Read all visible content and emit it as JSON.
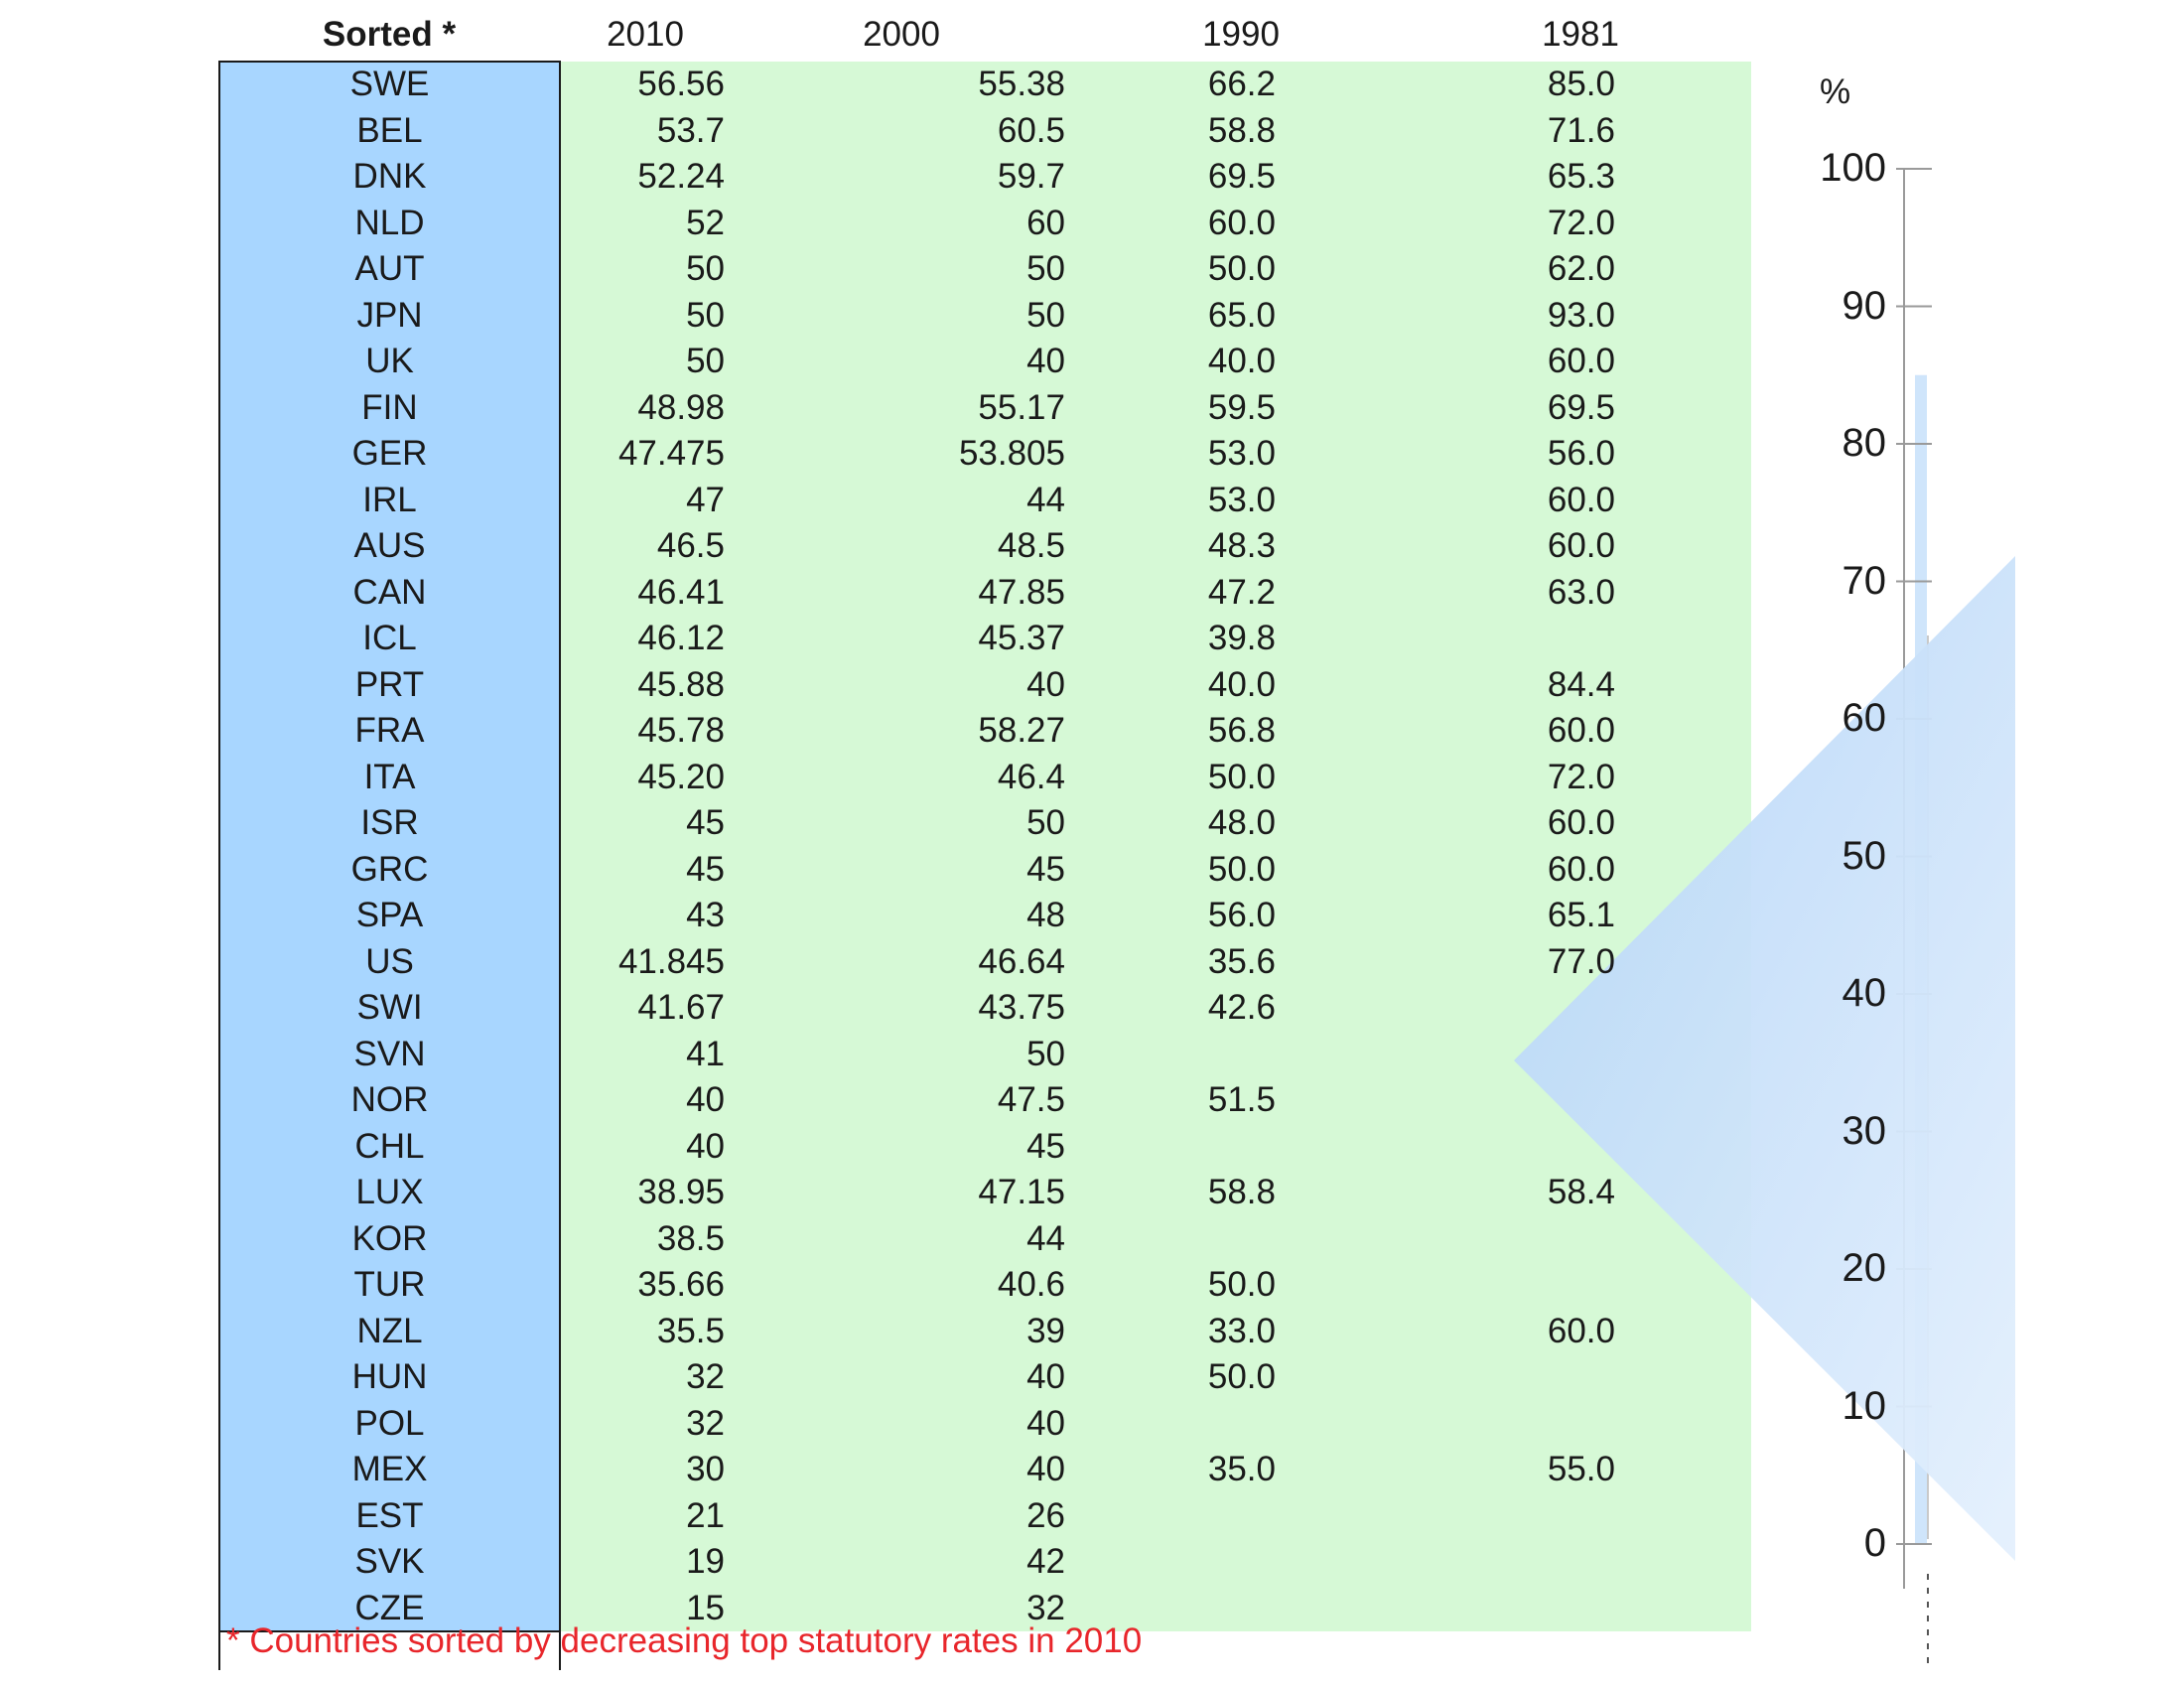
{
  "table": {
    "headers": [
      "Sorted *",
      "2010",
      "2000",
      "1990",
      "1981"
    ],
    "rows": [
      [
        "SWE",
        "56.56",
        "55.38",
        "66.2",
        "85.0"
      ],
      [
        "BEL",
        "53.7",
        "60.5",
        "58.8",
        "71.6"
      ],
      [
        "DNK",
        "52.24",
        "59.7",
        "69.5",
        "65.3"
      ],
      [
        "NLD",
        "52",
        "60",
        "60.0",
        "72.0"
      ],
      [
        "AUT",
        "50",
        "50",
        "50.0",
        "62.0"
      ],
      [
        "JPN",
        "50",
        "50",
        "65.0",
        "93.0"
      ],
      [
        "UK",
        "50",
        "40",
        "40.0",
        "60.0"
      ],
      [
        "FIN",
        "48.98",
        "55.17",
        "59.5",
        "69.5"
      ],
      [
        "GER",
        "47.475",
        "53.805",
        "53.0",
        "56.0"
      ],
      [
        "IRL",
        "47",
        "44",
        "53.0",
        "60.0"
      ],
      [
        "AUS",
        "46.5",
        "48.5",
        "48.3",
        "60.0"
      ],
      [
        "CAN",
        "46.41",
        "47.85",
        "47.2",
        "63.0"
      ],
      [
        "ICL",
        "46.12",
        "45.37",
        "39.8",
        ""
      ],
      [
        "PRT",
        "45.88",
        "40",
        "40.0",
        "84.4"
      ],
      [
        "FRA",
        "45.78",
        "58.27",
        "56.8",
        "60.0"
      ],
      [
        "ITA",
        "45.20",
        "46.4",
        "50.0",
        "72.0"
      ],
      [
        "ISR",
        "45",
        "50",
        "48.0",
        "60.0"
      ],
      [
        "GRC",
        "45",
        "45",
        "50.0",
        "60.0"
      ],
      [
        "SPA",
        "43",
        "48",
        "56.0",
        "65.1"
      ],
      [
        "US",
        "41.845",
        "46.64",
        "35.6",
        "77.0"
      ],
      [
        "SWI",
        "41.67",
        "43.75",
        "42.6",
        ""
      ],
      [
        "SVN",
        "41",
        "50",
        "",
        ""
      ],
      [
        "NOR",
        "40",
        "47.5",
        "51.5",
        ""
      ],
      [
        "CHL",
        "40",
        "45",
        "",
        ""
      ],
      [
        "LUX",
        "38.95",
        "47.15",
        "58.8",
        "58.4"
      ],
      [
        "KOR",
        "38.5",
        "44",
        "",
        ""
      ],
      [
        "TUR",
        "35.66",
        "40.6",
        "50.0",
        ""
      ],
      [
        "NZL",
        "35.5",
        "39",
        "33.0",
        "60.0"
      ],
      [
        "HUN",
        "32",
        "40",
        "50.0",
        ""
      ],
      [
        "POL",
        "32",
        "40",
        "",
        ""
      ],
      [
        "MEX",
        "30",
        "40",
        "35.0",
        "55.0"
      ],
      [
        "EST",
        "21",
        "26",
        "",
        ""
      ],
      [
        "SVK",
        "19",
        "42",
        "",
        ""
      ],
      [
        "CZE",
        "15",
        "32",
        "",
        ""
      ]
    ],
    "footnote": "* Countries sorted by decreasing top statutory rates in 2010"
  },
  "axis": {
    "unit": "%",
    "ticks": [
      "100",
      "90",
      "80",
      "70",
      "60",
      "50",
      "40",
      "30",
      "20",
      "10",
      "0"
    ]
  },
  "colors": {
    "country_column": "#a8d6ff",
    "data_area": "#d6f9d6",
    "footnote": "#e8262b",
    "arrow": "#b3d4f7"
  },
  "chart_data": {
    "type": "table",
    "columns": [
      "2010",
      "2000",
      "1990",
      "1981"
    ],
    "categories": [
      "SWE",
      "BEL",
      "DNK",
      "NLD",
      "AUT",
      "JPN",
      "UK",
      "FIN",
      "GER",
      "IRL",
      "AUS",
      "CAN",
      "ICL",
      "PRT",
      "FRA",
      "ITA",
      "ISR",
      "GRC",
      "SPA",
      "US",
      "SWI",
      "SVN",
      "NOR",
      "CHL",
      "LUX",
      "KOR",
      "TUR",
      "NZL",
      "HUN",
      "POL",
      "MEX",
      "EST",
      "SVK",
      "CZE"
    ],
    "series": [
      {
        "name": "2010",
        "values": [
          56.56,
          53.7,
          52.24,
          52,
          50,
          50,
          50,
          48.98,
          47.475,
          47,
          46.5,
          46.41,
          46.12,
          45.88,
          45.78,
          45.2,
          45,
          45,
          43,
          41.845,
          41.67,
          41,
          40,
          40,
          38.95,
          38.5,
          35.66,
          35.5,
          32,
          32,
          30,
          21,
          19,
          15
        ]
      },
      {
        "name": "2000",
        "values": [
          55.38,
          60.5,
          59.7,
          60,
          50,
          50,
          40,
          55.17,
          53.805,
          44,
          48.5,
          47.85,
          45.37,
          40,
          58.27,
          46.4,
          50,
          45,
          48,
          46.64,
          43.75,
          50,
          47.5,
          45,
          47.15,
          44,
          40.6,
          39,
          40,
          40,
          40,
          26,
          42,
          32
        ]
      },
      {
        "name": "1990",
        "values": [
          66.2,
          58.8,
          69.5,
          60.0,
          50.0,
          65.0,
          40.0,
          59.5,
          53.0,
          53.0,
          48.3,
          47.2,
          39.8,
          40.0,
          56.8,
          50.0,
          48.0,
          50.0,
          56.0,
          35.6,
          42.6,
          null,
          51.5,
          null,
          58.8,
          null,
          50.0,
          33.0,
          50.0,
          null,
          35.0,
          null,
          null,
          null
        ]
      },
      {
        "name": "1981",
        "values": [
          85.0,
          71.6,
          65.3,
          72.0,
          62.0,
          93.0,
          60.0,
          69.5,
          56.0,
          60.0,
          60.0,
          63.0,
          null,
          84.4,
          60.0,
          72.0,
          60.0,
          60.0,
          65.1,
          77.0,
          null,
          null,
          null,
          null,
          58.4,
          null,
          null,
          60.0,
          null,
          null,
          55.0,
          null,
          null,
          null
        ]
      }
    ],
    "ylabel": "%",
    "ylim": [
      0,
      100
    ]
  }
}
